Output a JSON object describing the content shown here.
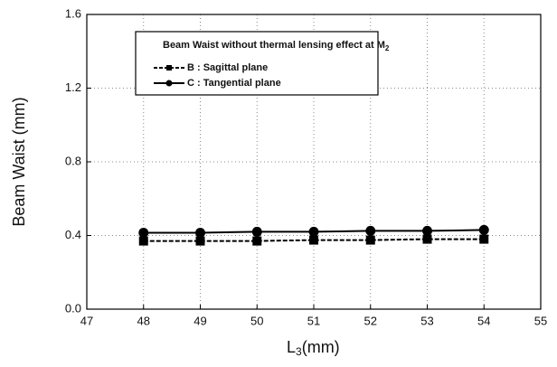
{
  "chart_data": {
    "type": "line",
    "xlabel": [
      "L",
      "3",
      "(mm)"
    ],
    "ylabel": "Beam Waist (mm)",
    "legend_title": [
      "Beam Waist without thermal lensing effect at M",
      "2"
    ],
    "x": [
      48,
      49,
      50,
      51,
      52,
      53,
      54
    ],
    "series": [
      {
        "name": "B : Sagittal plane",
        "color": "#000000",
        "marker": "square",
        "style": "dashed",
        "values": [
          0.37,
          0.37,
          0.37,
          0.375,
          0.375,
          0.38,
          0.38
        ]
      },
      {
        "name": "C : Tangential plane",
        "color": "#000000",
        "marker": "circle",
        "style": "solid",
        "values": [
          0.415,
          0.415,
          0.42,
          0.42,
          0.425,
          0.425,
          0.43
        ]
      }
    ],
    "xlim": [
      47,
      55
    ],
    "xticks": [
      47,
      48,
      49,
      50,
      51,
      52,
      53,
      54,
      55
    ],
    "ylim": [
      0,
      1.6
    ],
    "yticks": [
      {
        "value": 0,
        "label": "0.0"
      },
      0.4,
      0.8,
      1.2,
      1.6
    ],
    "grid": true
  }
}
